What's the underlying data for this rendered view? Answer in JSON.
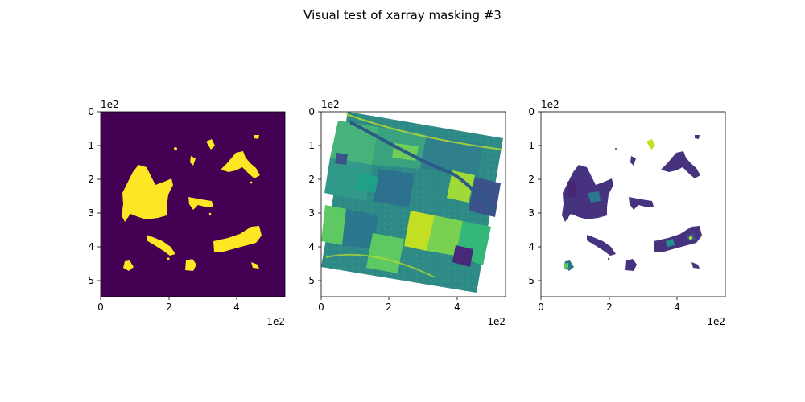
{
  "figure": {
    "title": "Visual test of xarray masking #3"
  },
  "colors": {
    "viridis_dark": "#440154",
    "viridis_yellow": "#fde725",
    "viridis_green": "#5ec962",
    "viridis_teal": "#21918c",
    "viridis_blue": "#3b528b",
    "mask_purple": "#46327e"
  },
  "chart_data": [
    {
      "type": "heatmap",
      "panel": "mask",
      "x_ticks": [
        "0",
        "2",
        "4"
      ],
      "y_ticks": [
        "0",
        "1",
        "2",
        "3",
        "4",
        "5"
      ],
      "x_offset_label": "1e2",
      "y_offset_label": "1e2",
      "xlim": [
        0,
        540
      ],
      "ylim": [
        540,
        0
      ],
      "background_value": 0,
      "mask_value": 1,
      "colormap": "viridis"
    },
    {
      "type": "heatmap",
      "panel": "image",
      "x_ticks": [
        "0",
        "2",
        "4"
      ],
      "y_ticks": [
        "0",
        "1",
        "2",
        "3",
        "4",
        "5"
      ],
      "x_offset_label": "1e2",
      "y_offset_label": "1e2",
      "xlim": [
        0,
        540
      ],
      "ylim": [
        540,
        0
      ],
      "colormap": "viridis"
    },
    {
      "type": "heatmap",
      "panel": "masked",
      "x_ticks": [
        "0",
        "2",
        "4"
      ],
      "y_ticks": [
        "0",
        "1",
        "2",
        "3",
        "4",
        "5"
      ],
      "x_offset_label": "1e2",
      "y_offset_label": "1e2",
      "xlim": [
        0,
        540
      ],
      "ylim": [
        540,
        0
      ],
      "colormap": "viridis"
    }
  ]
}
